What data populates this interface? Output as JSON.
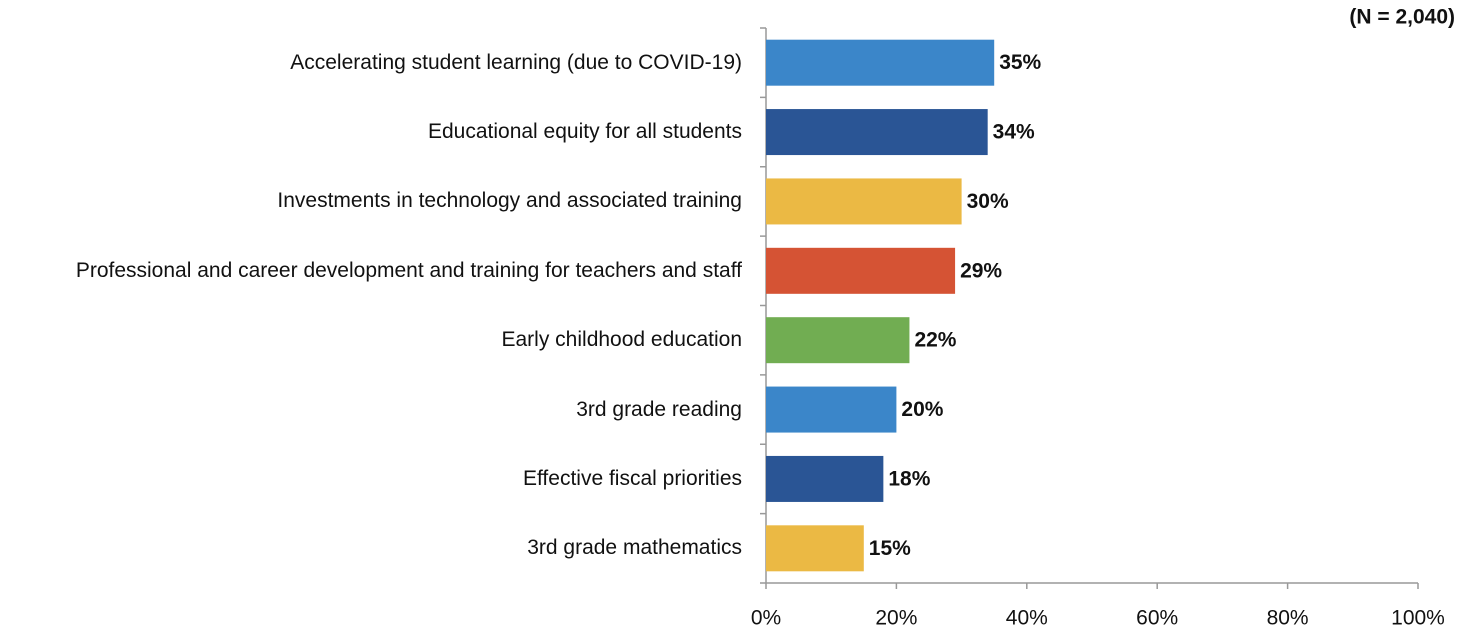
{
  "chart_data": {
    "type": "barh",
    "subtitle": "(N = 2,040)",
    "categories": [
      "Accelerating student learning (due to COVID-19)",
      "Educational equity for all students",
      "Investments in technology and associated training",
      "Professional and career development and training for teachers and staff",
      "Early childhood education",
      "3rd grade reading",
      "Effective fiscal priorities",
      "3rd grade mathematics"
    ],
    "values": [
      35,
      34,
      30,
      29,
      22,
      20,
      18,
      15
    ],
    "value_labels": [
      "35%",
      "34%",
      "30%",
      "29%",
      "22%",
      "20%",
      "18%",
      "15%"
    ],
    "colors": [
      "#3b86c9",
      "#2a5595",
      "#ebb944",
      "#d55334",
      "#71ad52",
      "#3b86c9",
      "#2a5595",
      "#ebb944"
    ],
    "xlim": [
      0,
      100
    ],
    "xticks": [
      {
        "value": 0,
        "label": "0%"
      },
      {
        "value": 20,
        "label": "20%"
      },
      {
        "value": 40,
        "label": "40%"
      },
      {
        "value": 60,
        "label": "60%"
      },
      {
        "value": 80,
        "label": "80%"
      },
      {
        "value": 100,
        "label": "100%"
      }
    ],
    "grid": false
  }
}
